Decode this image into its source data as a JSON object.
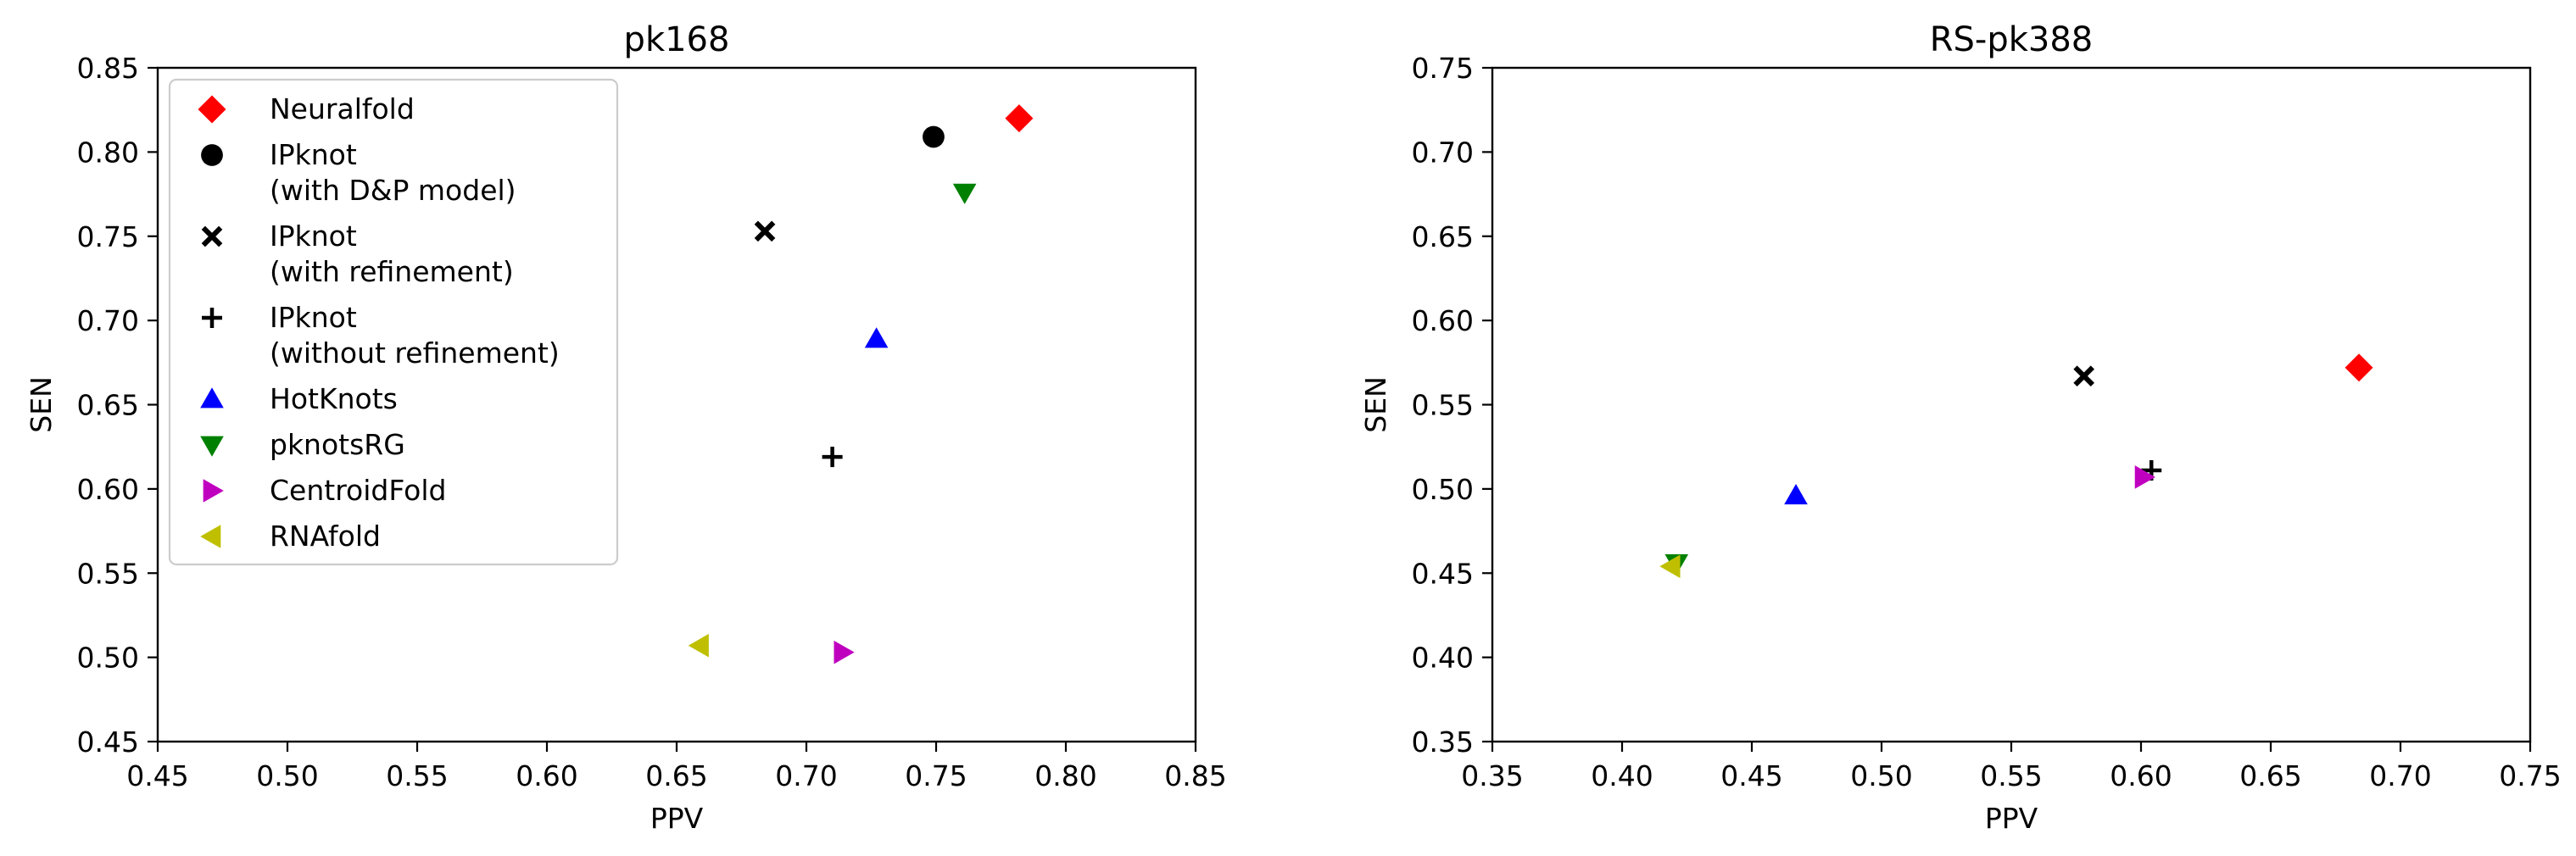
{
  "chart_data": [
    {
      "type": "scatter",
      "title": "pk168",
      "xlabel": "PPV",
      "ylabel": "SEN",
      "xlim": [
        0.45,
        0.85
      ],
      "ylim": [
        0.45,
        0.85
      ],
      "xticks": [
        "0.45",
        "0.50",
        "0.55",
        "0.60",
        "0.65",
        "0.70",
        "0.75",
        "0.80",
        "0.85"
      ],
      "yticks": [
        "0.45",
        "0.50",
        "0.55",
        "0.60",
        "0.65",
        "0.70",
        "0.75",
        "0.80",
        "0.85"
      ],
      "grid": false,
      "legend": "upper-left",
      "series": [
        {
          "name": "Neuralfold",
          "marker": "diamond",
          "color": "#ff0000",
          "x": 0.782,
          "y": 0.82
        },
        {
          "name": "IPknot\n(with D&P model)",
          "marker": "circle",
          "color": "#000000",
          "x": 0.749,
          "y": 0.809
        },
        {
          "name": "IPknot\n(with refinement)",
          "marker": "x",
          "color": "#000000",
          "x": 0.684,
          "y": 0.753
        },
        {
          "name": "IPknot\n(without refinement)",
          "marker": "plus",
          "color": "#000000",
          "x": 0.71,
          "y": 0.619
        },
        {
          "name": "HotKnots",
          "marker": "triangle-up",
          "color": "#0000ff",
          "x": 0.727,
          "y": 0.689
        },
        {
          "name": "pknotsRG",
          "marker": "triangle-down",
          "color": "#008000",
          "x": 0.761,
          "y": 0.776
        },
        {
          "name": "CentroidFold",
          "marker": "triangle-right",
          "color": "#bf00bf",
          "x": 0.714,
          "y": 0.503
        },
        {
          "name": "RNAfold",
          "marker": "triangle-left",
          "color": "#bfbf00",
          "x": 0.659,
          "y": 0.507
        }
      ]
    },
    {
      "type": "scatter",
      "title": "RS-pk388",
      "xlabel": "PPV",
      "ylabel": "SEN",
      "xlim": [
        0.35,
        0.75
      ],
      "ylim": [
        0.35,
        0.75
      ],
      "xticks": [
        "0.35",
        "0.40",
        "0.45",
        "0.50",
        "0.55",
        "0.60",
        "0.65",
        "0.70",
        "0.75"
      ],
      "yticks": [
        "0.35",
        "0.40",
        "0.45",
        "0.50",
        "0.55",
        "0.60",
        "0.65",
        "0.70",
        "0.75"
      ],
      "grid": false,
      "series": [
        {
          "name": "Neuralfold",
          "marker": "diamond",
          "color": "#ff0000",
          "x": 0.684,
          "y": 0.572
        },
        {
          "name": "IPknot\n(with refinement)",
          "marker": "x",
          "color": "#000000",
          "x": 0.578,
          "y": 0.567
        },
        {
          "name": "IPknot\n(without refinement)",
          "marker": "plus",
          "color": "#000000",
          "x": 0.604,
          "y": 0.511
        },
        {
          "name": "HotKnots",
          "marker": "triangle-up",
          "color": "#0000ff",
          "x": 0.467,
          "y": 0.496
        },
        {
          "name": "pknotsRG",
          "marker": "triangle-down",
          "color": "#008000",
          "x": 0.421,
          "y": 0.456
        },
        {
          "name": "CentroidFold",
          "marker": "triangle-right",
          "color": "#bf00bf",
          "x": 0.601,
          "y": 0.507
        },
        {
          "name": "RNAfold",
          "marker": "triangle-left",
          "color": "#bfbf00",
          "x": 0.419,
          "y": 0.454
        }
      ]
    }
  ]
}
